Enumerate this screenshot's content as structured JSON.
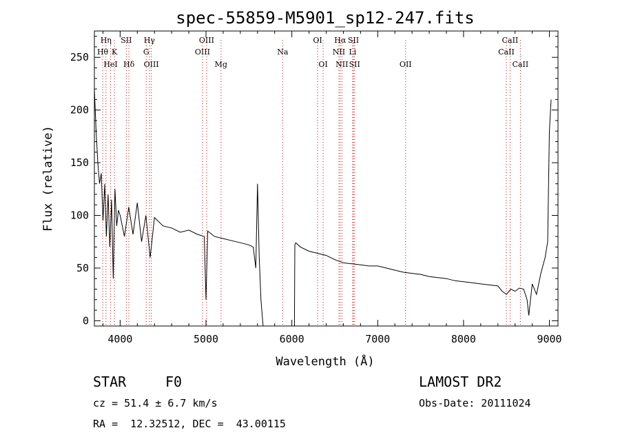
{
  "chart_data": {
    "type": "line",
    "title": "spec-55859-M5901_sp12-247.fits",
    "xlabel": "Wavelength (Å)",
    "ylabel": "Flux (relative)",
    "xlim": [
      3700,
      9100
    ],
    "ylim": [
      -5,
      275
    ],
    "xticks": [
      4000,
      5000,
      6000,
      7000,
      8000,
      9000
    ],
    "yticks": [
      0,
      50,
      100,
      150,
      200,
      250
    ],
    "grid": false,
    "line_color": "#000000",
    "marker_color": "#cc0000",
    "lines": [
      {
        "label": "Hη",
        "x": 3835,
        "row": 0
      },
      {
        "label": "Hθ",
        "x": 3797,
        "row": 1
      },
      {
        "label": "K",
        "x": 3934,
        "row": 1
      },
      {
        "label": "HeI",
        "x": 3889,
        "row": 2
      },
      {
        "label": "SII",
        "x": 4072,
        "row": 0
      },
      {
        "label": "Hδ",
        "x": 4102,
        "row": 2
      },
      {
        "label": "Hγ",
        "x": 4341,
        "row": 0
      },
      {
        "label": "G",
        "x": 4304,
        "row": 1
      },
      {
        "label": "OIII",
        "x": 4363,
        "row": 2
      },
      {
        "label": "OIII",
        "x": 5007,
        "row": 0
      },
      {
        "label": "OIII",
        "x": 4959,
        "row": 1
      },
      {
        "label": "Mg",
        "x": 5175,
        "row": 2
      },
      {
        "label": "Na",
        "x": 5893,
        "row": 1
      },
      {
        "label": "OI",
        "x": 6300,
        "row": 0
      },
      {
        "label": "OI",
        "x": 6364,
        "row": 2
      },
      {
        "label": "Hα",
        "x": 6563,
        "row": 0
      },
      {
        "label": "SII",
        "x": 6717,
        "row": 0
      },
      {
        "label": "NII",
        "x": 6548,
        "row": 1
      },
      {
        "label": "Li",
        "x": 6708,
        "row": 1
      },
      {
        "label": "NII",
        "x": 6583,
        "row": 2
      },
      {
        "label": "SII",
        "x": 6731,
        "row": 2
      },
      {
        "label": "OII",
        "x": 7325,
        "row": 2
      },
      {
        "label": "CaII",
        "x": 8542,
        "row": 0
      },
      {
        "label": "CaII",
        "x": 8498,
        "row": 1
      },
      {
        "label": "CaII",
        "x": 8662,
        "row": 2
      }
    ],
    "series": [
      {
        "x": [
          3700,
          3720,
          3740,
          3760,
          3780,
          3800,
          3820,
          3840,
          3860,
          3880,
          3900,
          3920,
          3940,
          3960,
          3980,
          4000,
          4050,
          4100,
          4150,
          4200,
          4250,
          4300,
          4350,
          4400,
          4500,
          4600,
          4700,
          4800,
          4900,
          4980,
          5000,
          5020,
          5100,
          5200,
          5300,
          5400,
          5500,
          5550,
          5580,
          5600,
          5620,
          5640,
          5660,
          5665,
          6030,
          6035,
          6045,
          6100,
          6200,
          6300,
          6400,
          6500,
          6600,
          6700,
          6800,
          6900,
          7000,
          7100,
          7200,
          7300,
          7400,
          7500,
          7600,
          7700,
          7800,
          7900,
          8000,
          8100,
          8200,
          8300,
          8400,
          8450,
          8500,
          8550,
          8600,
          8650,
          8700,
          8740,
          8760,
          8800,
          8850,
          8900,
          8950,
          8980,
          9000,
          9020
        ],
        "values": [
          220,
          180,
          150,
          130,
          140,
          95,
          130,
          80,
          120,
          70,
          115,
          40,
          125,
          90,
          105,
          100,
          80,
          108,
          82,
          112,
          75,
          100,
          60,
          98,
          90,
          88,
          84,
          86,
          82,
          80,
          20,
          85,
          80,
          78,
          76,
          74,
          72,
          70,
          50,
          130,
          60,
          20,
          0,
          -5,
          -5,
          72,
          74,
          70,
          66,
          64,
          62,
          58,
          55,
          54,
          53,
          52,
          52,
          50,
          48,
          46,
          45,
          44,
          42,
          41,
          40,
          38,
          37,
          36,
          35,
          34,
          33,
          28,
          25,
          30,
          28,
          31,
          30,
          20,
          5,
          35,
          25,
          45,
          60,
          75,
          180,
          210
        ]
      }
    ]
  },
  "info": {
    "object_type": "STAR",
    "subclass": "F0",
    "survey": "LAMOST DR2",
    "cz": "cz = 51.4 ± 6.7 km/s",
    "obs_date": "Obs-Date: 20111024",
    "coords": "RA =  12.32512, DEC =  43.00115"
  }
}
